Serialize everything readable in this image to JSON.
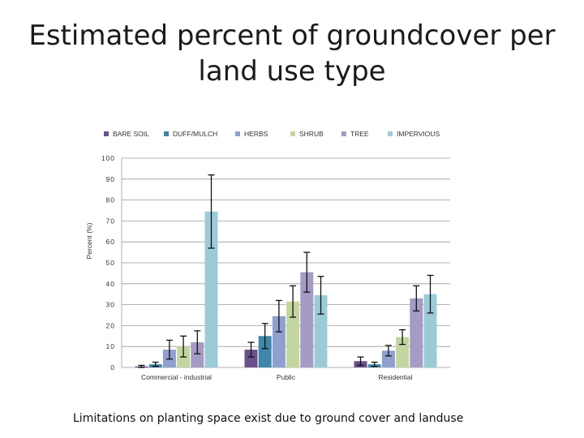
{
  "slide": {
    "title_line1": "Estimated percent of groundcover per",
    "title_line2": "land use type",
    "caption": "Limitations on planting space exist due to ground cover and landuse"
  },
  "chart_data": {
    "type": "bar",
    "title": "",
    "xlabel": "",
    "ylabel": "Percent (%)",
    "ylim": [
      0,
      100
    ],
    "yticks": [
      0,
      10,
      20,
      30,
      40,
      50,
      60,
      70,
      80,
      90,
      100
    ],
    "grid": true,
    "legend_position": "top",
    "error_bars": true,
    "categories": [
      "Commercial - industrial",
      "Public",
      "Residential"
    ],
    "series": [
      {
        "name": "BARE SOIL",
        "color": "#6a4f8c",
        "values": [
          0.5,
          8.5,
          3
        ],
        "error": [
          0.5,
          3.5,
          2
        ]
      },
      {
        "name": "DUFF/MULCH",
        "color": "#3f86a8",
        "values": [
          1.5,
          15,
          1.5
        ],
        "error": [
          1,
          6,
          1
        ]
      },
      {
        "name": "HERBS",
        "color": "#8fa0cf",
        "values": [
          8.5,
          24.5,
          8
        ],
        "error": [
          4.5,
          7.5,
          2.5
        ]
      },
      {
        "name": "SHRUB",
        "color": "#c3d6a0",
        "values": [
          10,
          31.5,
          14.5
        ],
        "error": [
          5,
          7.5,
          3.5
        ]
      },
      {
        "name": "TREE",
        "color": "#a59bc4",
        "values": [
          12,
          45.5,
          33
        ],
        "error": [
          5.5,
          9.5,
          6
        ]
      },
      {
        "name": "IMPERVIOUS",
        "color": "#9ccbd8",
        "values": [
          74.5,
          34.5,
          35
        ],
        "error": [
          17.5,
          9,
          9
        ]
      }
    ]
  }
}
